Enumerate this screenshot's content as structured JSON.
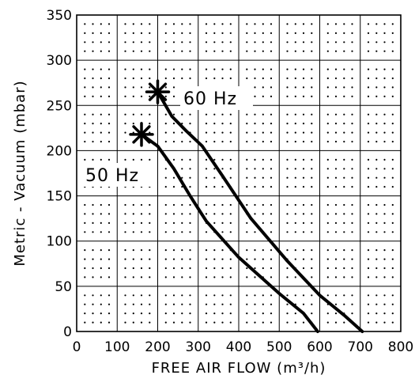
{
  "chart_data": {
    "type": "line",
    "title": "",
    "xlabel": "FREE AIR FLOW (m³/h)",
    "ylabel": "Metric - Vacuum (mbar)",
    "xlim": [
      0,
      800
    ],
    "ylim": [
      0,
      350
    ],
    "x_ticks": [
      "0",
      "100",
      "200",
      "300",
      "400",
      "500",
      "600",
      "700",
      "800"
    ],
    "y_ticks": [
      "0",
      "50",
      "100",
      "150",
      "200",
      "250",
      "300",
      "350"
    ],
    "grid": true,
    "series": [
      {
        "name": "50 Hz",
        "points": [
          [
            160,
            218
          ],
          [
            200,
            205
          ],
          [
            240,
            180
          ],
          [
            280,
            150
          ],
          [
            320,
            122
          ],
          [
            400,
            82
          ],
          [
            500,
            42
          ],
          [
            560,
            20
          ],
          [
            595,
            0
          ]
        ],
        "marker_at_start": true
      },
      {
        "name": "60 Hz",
        "points": [
          [
            200,
            265
          ],
          [
            235,
            238
          ],
          [
            270,
            222
          ],
          [
            310,
            205
          ],
          [
            360,
            172
          ],
          [
            430,
            125
          ],
          [
            520,
            78
          ],
          [
            600,
            40
          ],
          [
            660,
            18
          ],
          [
            705,
            0
          ]
        ],
        "marker_at_start": true
      }
    ]
  }
}
